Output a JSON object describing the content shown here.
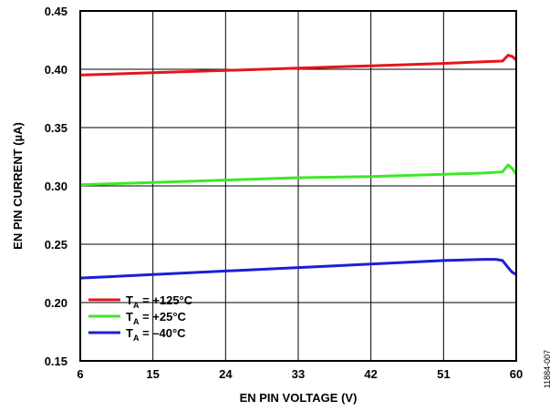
{
  "chart_data": {
    "type": "line",
    "xlabel": "EN PIN VOLTAGE (V)",
    "ylabel": "EN PIN CURRENT (µA)",
    "xlim": [
      6,
      60
    ],
    "ylim": [
      0.15,
      0.45
    ],
    "x_ticks": [
      6,
      15,
      24,
      33,
      42,
      51,
      60
    ],
    "y_ticks": [
      0.15,
      0.2,
      0.25,
      0.3,
      0.35,
      0.4,
      0.45
    ],
    "x_tick_labels": [
      "6",
      "15",
      "24",
      "33",
      "42",
      "51",
      "60"
    ],
    "y_tick_labels": [
      "0.15",
      "0.20",
      "0.25",
      "0.30",
      "0.35",
      "0.40",
      "0.45"
    ],
    "grid": true,
    "legend_position": "bottom-left",
    "series": [
      {
        "name": "TA = +125°C",
        "name_parts": {
          "main": "T",
          "sub": "A",
          "rest": " = +125°C"
        },
        "color": "#e8141b",
        "x": [
          6,
          15,
          24,
          33,
          42,
          51,
          56,
          58.3,
          59,
          59.5,
          60
        ],
        "y": [
          0.395,
          0.397,
          0.399,
          0.401,
          0.403,
          0.405,
          0.4065,
          0.407,
          0.412,
          0.411,
          0.408
        ]
      },
      {
        "name": "TA = +25°C",
        "name_parts": {
          "main": "T",
          "sub": "A",
          "rest": " = +25°C"
        },
        "color": "#3ee828",
        "x": [
          6,
          15,
          24,
          33,
          42,
          51,
          56,
          58.3,
          59,
          59.5,
          60
        ],
        "y": [
          0.301,
          0.303,
          0.305,
          0.307,
          0.308,
          0.31,
          0.311,
          0.312,
          0.318,
          0.315,
          0.31
        ]
      },
      {
        "name": "TA = –40°C",
        "name_parts": {
          "main": "T",
          "sub": "A",
          "rest": " = –40°C"
        },
        "color": "#1c1fd6",
        "x": [
          6,
          15,
          24,
          33,
          42,
          51,
          56,
          57.5,
          58.3,
          59,
          59.5,
          60
        ],
        "y": [
          0.221,
          0.224,
          0.227,
          0.23,
          0.233,
          0.236,
          0.237,
          0.237,
          0.236,
          0.23,
          0.226,
          0.224
        ]
      }
    ]
  },
  "figure_id": "11884-007"
}
